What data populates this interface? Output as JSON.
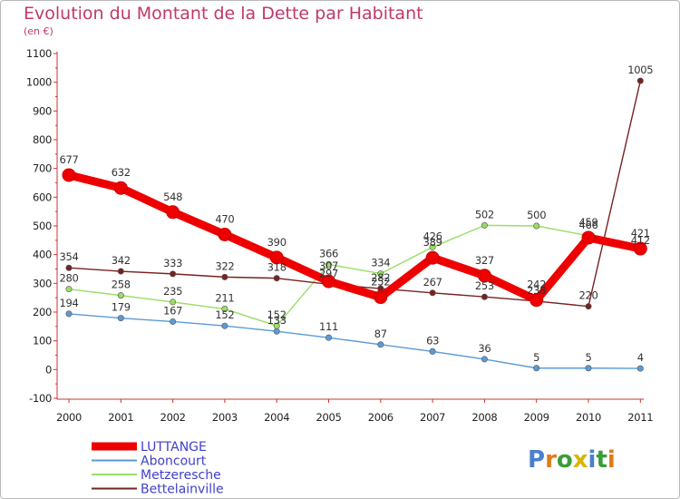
{
  "chart_data": {
    "type": "line",
    "title": "Evolution du Montant de la Dette par Habitant",
    "subtitle": "(en €)",
    "categories": [
      "2000",
      "2001",
      "2002",
      "2003",
      "2004",
      "2005",
      "2006",
      "2007",
      "2008",
      "2009",
      "2010",
      "2011"
    ],
    "ylim": [
      -100,
      1100
    ],
    "yticks": [
      -100,
      0,
      100,
      200,
      300,
      400,
      500,
      600,
      700,
      800,
      900,
      1000,
      1100
    ],
    "grid": false,
    "legend_position": "bottom-left",
    "series": [
      {
        "name": "LUTTANGE",
        "color": "#ee0000",
        "values": [
          677,
          632,
          548,
          470,
          390,
          307,
          252,
          389,
          327,
          242,
          459,
          421
        ]
      },
      {
        "name": "Aboncourt",
        "color": "#5b9bd5",
        "values": [
          194,
          179,
          167,
          152,
          133,
          111,
          87,
          63,
          36,
          5,
          5,
          4
        ]
      },
      {
        "name": "Metzeresche",
        "color": "#99dd66",
        "values": [
          280,
          258,
          235,
          211,
          152,
          366,
          334,
          426,
          502,
          500,
          466,
          412
        ]
      },
      {
        "name": "Bettelainville",
        "color": "#772222",
        "values": [
          354,
          342,
          333,
          322,
          318,
          297,
          282,
          267,
          253,
          238,
          220,
          1005
        ]
      }
    ]
  },
  "brand": {
    "text": "Proxiti"
  }
}
